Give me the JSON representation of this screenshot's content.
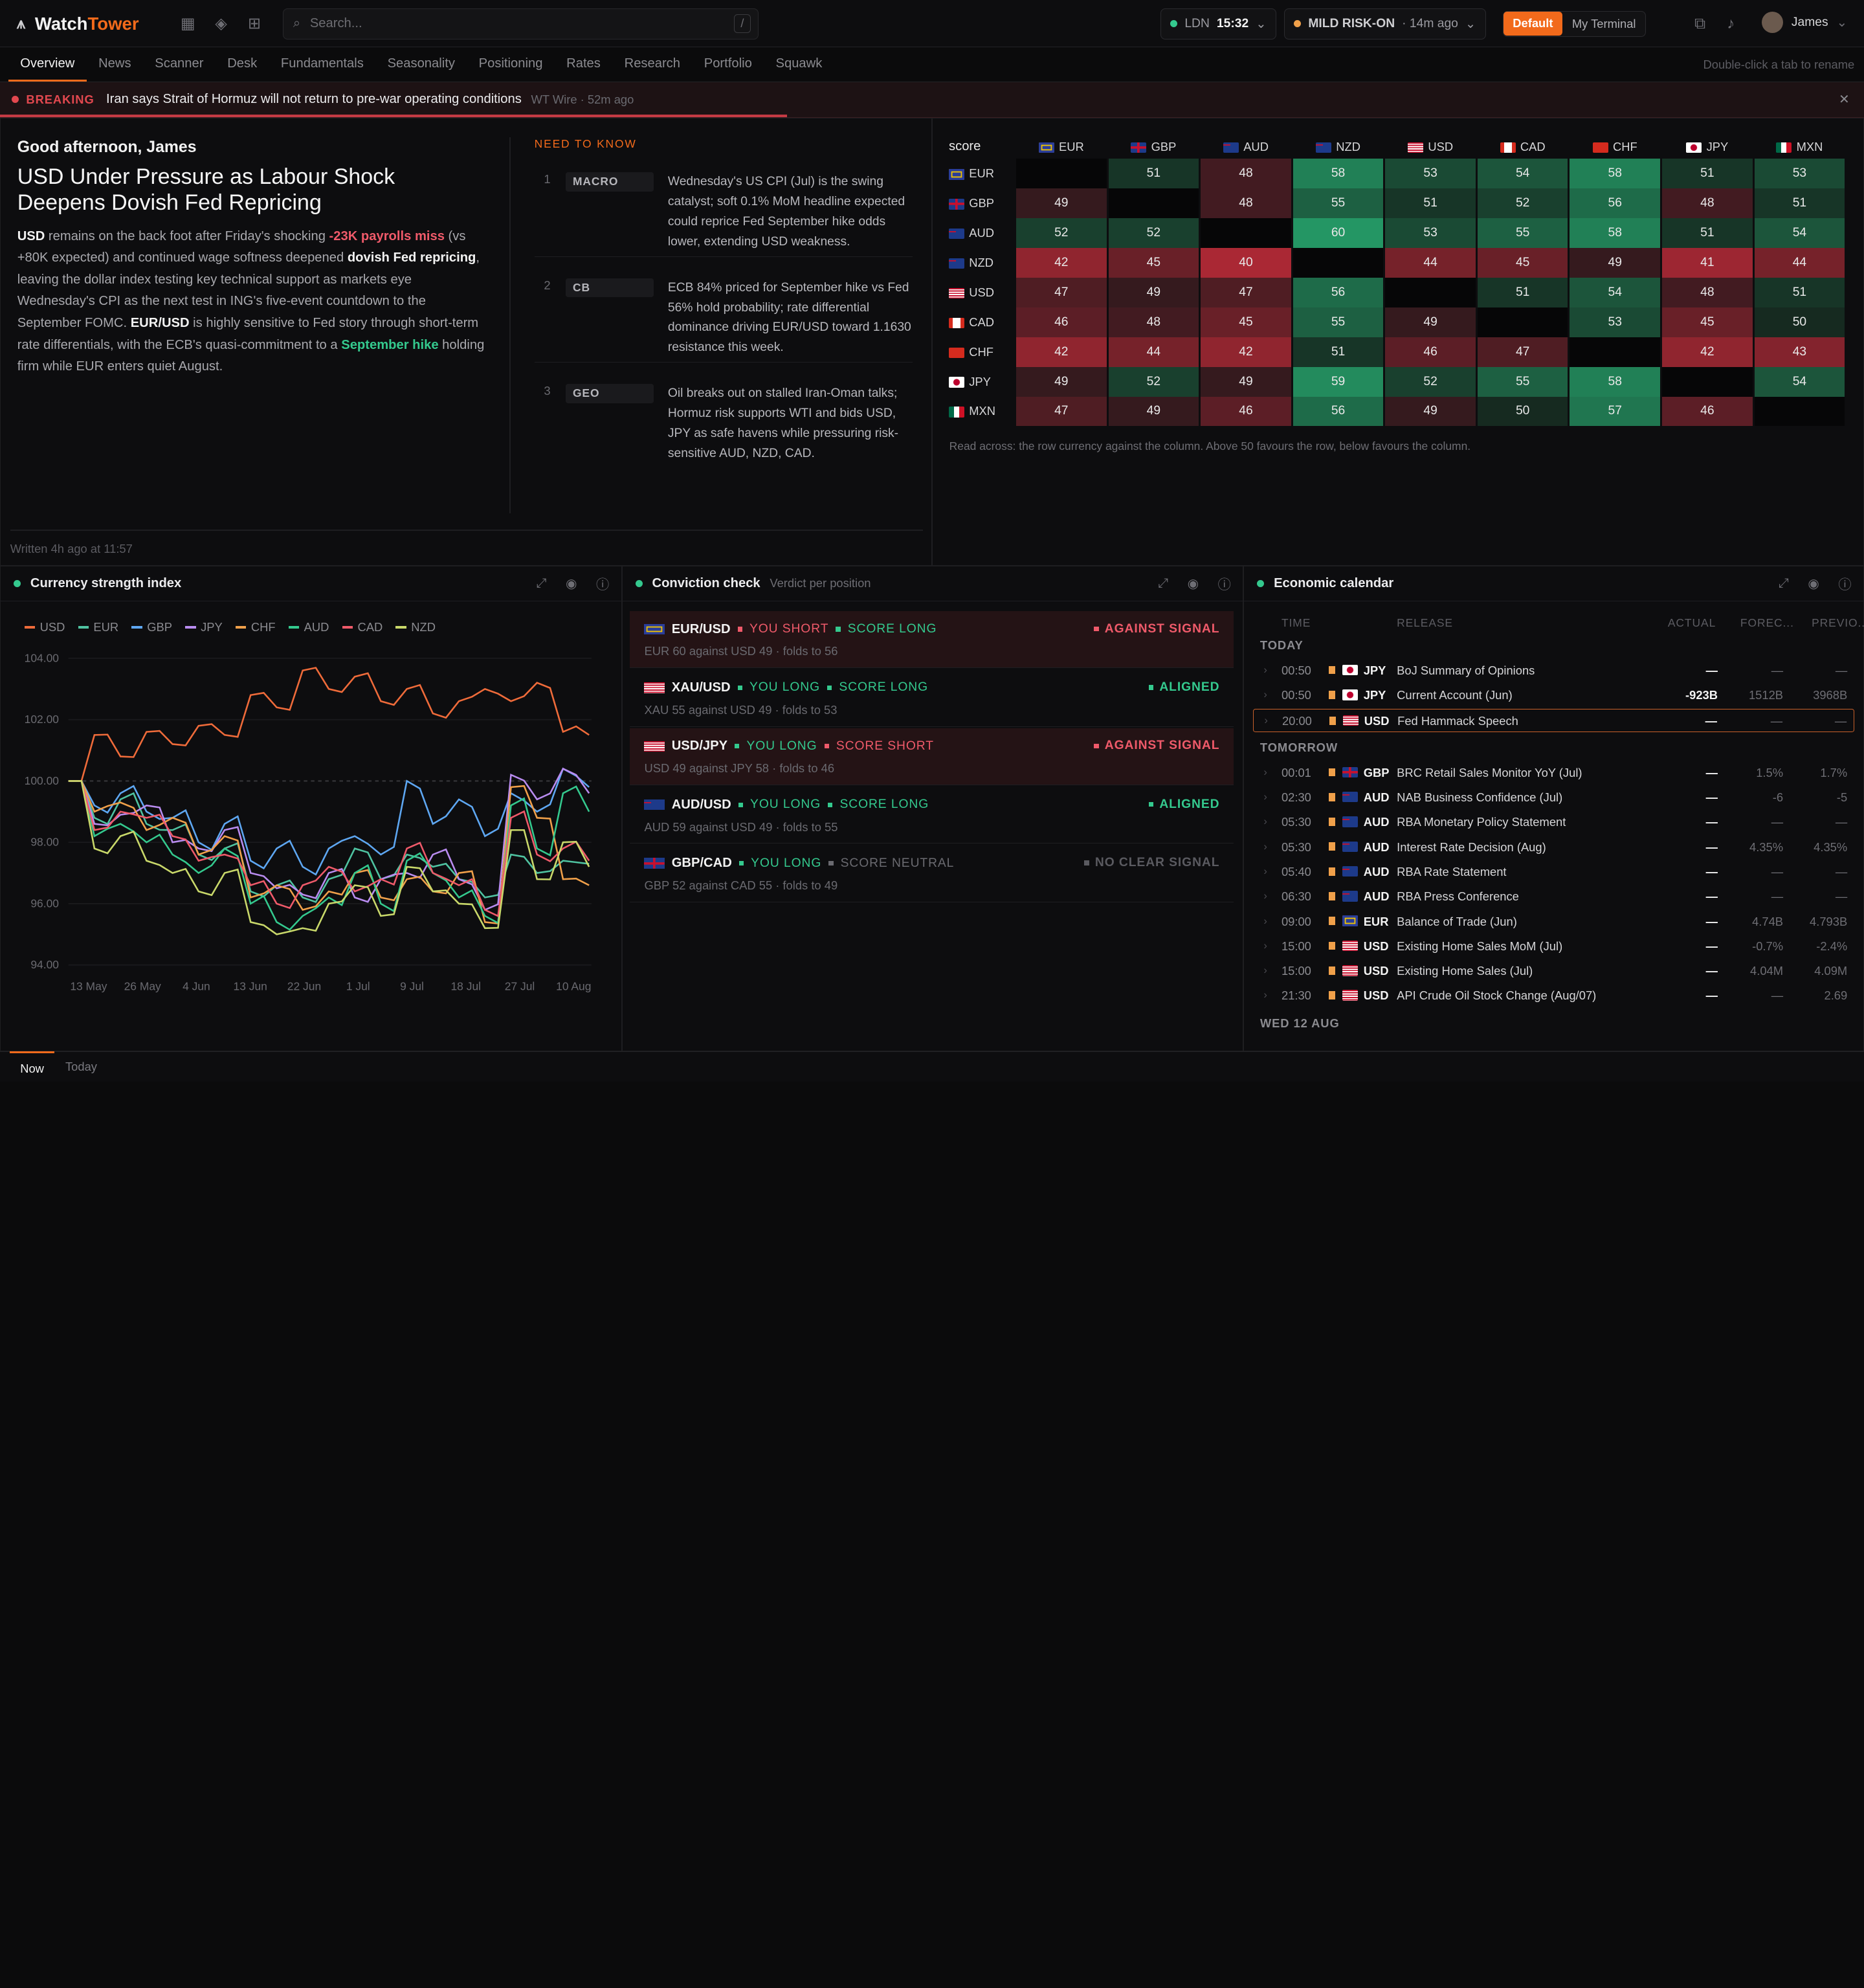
{
  "app": {
    "name_a": "Watch",
    "name_b": "Tower",
    "search_placeholder": "Search...",
    "search_shortcut": "/",
    "clock_city": "LDN",
    "clock_time": "15:32",
    "risk": "MILD RISK-ON",
    "risk_age": "· 14m ago",
    "layout_default": "Default",
    "layout_my": "My Terminal",
    "user": "James"
  },
  "tabs": [
    "Overview",
    "News",
    "Scanner",
    "Desk",
    "Fundamentals",
    "Seasonality",
    "Positioning",
    "Rates",
    "Research",
    "Portfolio",
    "Squawk"
  ],
  "tabs_hint": "Double-click a tab to rename",
  "breaking": {
    "label": "BREAKING",
    "text": "Iran says Strait of Hormuz will not return to pre-war operating conditions",
    "source": "WT Wire · 52m ago"
  },
  "brief": {
    "greeting": "Good afternoon, James",
    "headline": "USD Under Pressure as Labour Shock Deepens Dovish Fed Repricing",
    "p1": "USD",
    "p2": " remains on the back foot after Friday's shocking ",
    "p3": "-23K payrolls miss",
    "p4": " (vs +80K expected) and continued wage softness deepened ",
    "p5": "dovish Fed repricing",
    "p6": ", leaving the dollar index testing key technical support as markets eye Wednesday's CPI as the next test in ING's five-event countdown to the September FOMC. ",
    "p7": "EUR/USD",
    "p8": " is highly sensitive to Fed story through short-term rate differentials, with the ECB's quasi-commitment to a ",
    "p9": "September hike",
    "p10": " holding firm while EUR enters quiet August.",
    "written": "Written 4h ago at 11:57"
  },
  "need_to_know": {
    "title": "NEED TO KNOW",
    "items": [
      {
        "n": "1",
        "tag": "MACRO",
        "text": "Wednesday's US CPI (Jul) is the swing catalyst; soft 0.1% MoM headline expected could reprice Fed September hike odds lower, extending USD weakness."
      },
      {
        "n": "2",
        "tag": "CB",
        "text": "ECB 84% priced for September hike vs Fed 56% hold probability; rate differential dominance driving EUR/USD toward 1.1630 resistance this week."
      },
      {
        "n": "3",
        "tag": "GEO",
        "text": "Oil breaks out on stalled Iran-Oman talks; Hormuz risk supports WTI and bids USD, JPY as safe havens while pressuring risk-sensitive AUD, NZD, CAD."
      }
    ]
  },
  "heatmap": {
    "corner": "score",
    "currencies": [
      "EUR",
      "GBP",
      "AUD",
      "NZD",
      "USD",
      "CAD",
      "CHF",
      "JPY",
      "MXN"
    ],
    "rows": [
      [
        null,
        51,
        48,
        58,
        53,
        54,
        58,
        51,
        53
      ],
      [
        49,
        null,
        48,
        55,
        51,
        52,
        56,
        48,
        51
      ],
      [
        52,
        52,
        null,
        60,
        53,
        55,
        58,
        51,
        54
      ],
      [
        42,
        45,
        40,
        null,
        44,
        45,
        49,
        41,
        44
      ],
      [
        47,
        49,
        47,
        56,
        null,
        51,
        54,
        48,
        51
      ],
      [
        46,
        48,
        45,
        55,
        49,
        null,
        53,
        45,
        50
      ],
      [
        42,
        44,
        42,
        51,
        46,
        47,
        null,
        42,
        43
      ],
      [
        49,
        52,
        49,
        59,
        52,
        55,
        58,
        null,
        54
      ],
      [
        47,
        49,
        46,
        56,
        49,
        50,
        57,
        46,
        null
      ]
    ],
    "note": "Read across: the row currency against the column. Above 50 favours the row, below favours the column."
  },
  "strength": {
    "title": "Currency strength index"
  },
  "chart_data": {
    "type": "line",
    "title": "Currency strength index",
    "ylim": [
      94,
      104
    ],
    "yticks": [
      "104.00",
      "102.00",
      "100.00",
      "98.00",
      "96.00",
      "94.00"
    ],
    "xticks": [
      "13 May",
      "26 May",
      "4 Jun",
      "13 Jun",
      "22 Jun",
      "1 Jul",
      "9 Jul",
      "18 Jul",
      "27 Jul",
      "10 Aug"
    ],
    "series": [
      {
        "name": "USD",
        "color": "#ef6b3a",
        "values": [
          100,
          101.5,
          100.8,
          101.6,
          101.2,
          101.8,
          101.5,
          102.8,
          102.4,
          103.6,
          103.0,
          103.4,
          102.6,
          103.0,
          102.2,
          102.6,
          103.0,
          102.6,
          103.2,
          101.6,
          101.5
        ]
      },
      {
        "name": "EUR",
        "color": "#4fc3a1",
        "values": [
          100,
          98.8,
          99.4,
          98.6,
          98.4,
          97.6,
          97.8,
          96.4,
          96.6,
          96.2,
          96.8,
          97.8,
          96.8,
          97.6,
          97.2,
          96.8,
          96.2,
          97.6,
          97.0,
          97.4,
          97.3
        ]
      },
      {
        "name": "GBP",
        "color": "#5ea7f2",
        "values": [
          100,
          99.2,
          99.6,
          99.0,
          98.8,
          98.0,
          98.6,
          97.4,
          97.8,
          97.2,
          97.8,
          98.2,
          97.6,
          100.0,
          98.6,
          99.4,
          98.2,
          99.6,
          99.0,
          100.4,
          99.8
        ]
      },
      {
        "name": "JPY",
        "color": "#b98cf0",
        "values": [
          100,
          98.6,
          98.9,
          99.2,
          98.0,
          97.8,
          98.4,
          97.0,
          96.5,
          96.3,
          97.0,
          96.2,
          96.8,
          97.0,
          97.6,
          96.8,
          95.8,
          100.2,
          99.4,
          100.4,
          99.6
        ]
      },
      {
        "name": "CHF",
        "color": "#f0a04a",
        "values": [
          100,
          99.0,
          99.3,
          98.4,
          98.8,
          97.6,
          98.2,
          96.2,
          96.6,
          95.8,
          96.4,
          97.0,
          96.2,
          96.8,
          96.4,
          97.0,
          95.4,
          99.8,
          98.8,
          96.8,
          96.6
        ]
      },
      {
        "name": "AUD",
        "color": "#34c98e",
        "values": [
          100,
          98.2,
          98.6,
          98.0,
          97.6,
          97.0,
          97.8,
          96.0,
          95.4,
          95.6,
          96.2,
          97.0,
          96.0,
          97.4,
          97.0,
          96.2,
          95.6,
          99.2,
          97.8,
          99.6,
          99.0
        ]
      },
      {
        "name": "CAD",
        "color": "#ef5a6a",
        "values": [
          100,
          98.4,
          99.0,
          98.8,
          98.2,
          97.4,
          97.6,
          96.6,
          96.0,
          96.6,
          97.2,
          96.4,
          96.8,
          97.8,
          97.0,
          96.6,
          95.8,
          98.8,
          97.6,
          97.8,
          97.4
        ]
      },
      {
        "name": "NZD",
        "color": "#c9d86a",
        "values": [
          100,
          97.8,
          98.2,
          97.4,
          97.0,
          96.4,
          97.0,
          95.4,
          95.0,
          95.2,
          96.0,
          96.6,
          95.6,
          97.2,
          96.4,
          96.0,
          95.2,
          98.4,
          96.8,
          98.0,
          97.2
        ]
      }
    ]
  },
  "conviction": {
    "title": "Conviction check",
    "sub": "Verdict per position",
    "rows": [
      {
        "pair": "EUR/USD",
        "you": "YOU SHORT",
        "score": "SCORE LONG",
        "verdict": "AGAINST SIGNAL",
        "detail": "EUR 60 against USD 49 · folds to 56",
        "kind": "against"
      },
      {
        "pair": "XAU/USD",
        "you": "YOU LONG",
        "score": "SCORE LONG",
        "verdict": "ALIGNED",
        "detail": "XAU 55 against USD 49 · folds to 53",
        "kind": "aligned"
      },
      {
        "pair": "USD/JPY",
        "you": "YOU LONG",
        "score": "SCORE SHORT",
        "verdict": "AGAINST SIGNAL",
        "detail": "USD 49 against JPY 58 · folds to 46",
        "kind": "against"
      },
      {
        "pair": "AUD/USD",
        "you": "YOU LONG",
        "score": "SCORE LONG",
        "verdict": "ALIGNED",
        "detail": "AUD 59 against USD 49 · folds to 55",
        "kind": "aligned"
      },
      {
        "pair": "GBP/CAD",
        "you": "YOU LONG",
        "score": "SCORE NEUTRAL",
        "verdict": "NO CLEAR SIGNAL",
        "detail": "GBP 52 against CAD 55 · folds to 49",
        "kind": "neutral"
      }
    ]
  },
  "calendar": {
    "title": "Economic calendar",
    "cols": [
      "TIME",
      "RELEASE",
      "ACTUAL",
      "FOREC...",
      "PREVIO..."
    ],
    "today": "TODAY",
    "tomorrow": "TOMORROW",
    "wed": "WED 12 AUG",
    "rows_today": [
      {
        "time": "00:50",
        "ccy": "JPY",
        "name": "BoJ Summary of Opinions",
        "actual": "—",
        "fc": "—",
        "prev": "—"
      },
      {
        "time": "00:50",
        "ccy": "JPY",
        "name": "Current Account (Jun)",
        "actual": "-923B",
        "fc": "1512B",
        "prev": "3968B"
      },
      {
        "time": "20:00",
        "ccy": "USD",
        "name": "Fed Hammack Speech",
        "actual": "—",
        "fc": "—",
        "prev": "—"
      }
    ],
    "rows_tomorrow": [
      {
        "time": "00:01",
        "ccy": "GBP",
        "name": "BRC Retail Sales Monitor YoY (Jul)",
        "actual": "—",
        "fc": "1.5%",
        "prev": "1.7%"
      },
      {
        "time": "02:30",
        "ccy": "AUD",
        "name": "NAB Business Confidence (Jul)",
        "actual": "—",
        "fc": "-6",
        "prev": "-5"
      },
      {
        "time": "05:30",
        "ccy": "AUD",
        "name": "RBA Monetary Policy Statement",
        "actual": "—",
        "fc": "—",
        "prev": "—"
      },
      {
        "time": "05:30",
        "ccy": "AUD",
        "name": "Interest Rate Decision (Aug)",
        "actual": "—",
        "fc": "4.35%",
        "prev": "4.35%"
      },
      {
        "time": "05:40",
        "ccy": "AUD",
        "name": "RBA Rate Statement",
        "actual": "—",
        "fc": "—",
        "prev": "—"
      },
      {
        "time": "06:30",
        "ccy": "AUD",
        "name": "RBA Press Conference",
        "actual": "—",
        "fc": "—",
        "prev": "—"
      },
      {
        "time": "09:00",
        "ccy": "EUR",
        "name": "Balance of Trade (Jun)",
        "actual": "—",
        "fc": "4.74B",
        "prev": "4.793B"
      },
      {
        "time": "15:00",
        "ccy": "USD",
        "name": "Existing Home Sales MoM (Jul)",
        "actual": "—",
        "fc": "-0.7%",
        "prev": "-2.4%"
      },
      {
        "time": "15:00",
        "ccy": "USD",
        "name": "Existing Home Sales (Jul)",
        "actual": "—",
        "fc": "4.04M",
        "prev": "4.09M"
      },
      {
        "time": "21:30",
        "ccy": "USD",
        "name": "API Crude Oil Stock Change (Aug/07)",
        "actual": "—",
        "fc": "—",
        "prev": "2.69"
      }
    ]
  },
  "footer": {
    "now": "Now",
    "today": "Today"
  },
  "colors": {
    "accent": "#f26a1b",
    "pos": "#2f9a6a",
    "neg": "#b8343f"
  }
}
